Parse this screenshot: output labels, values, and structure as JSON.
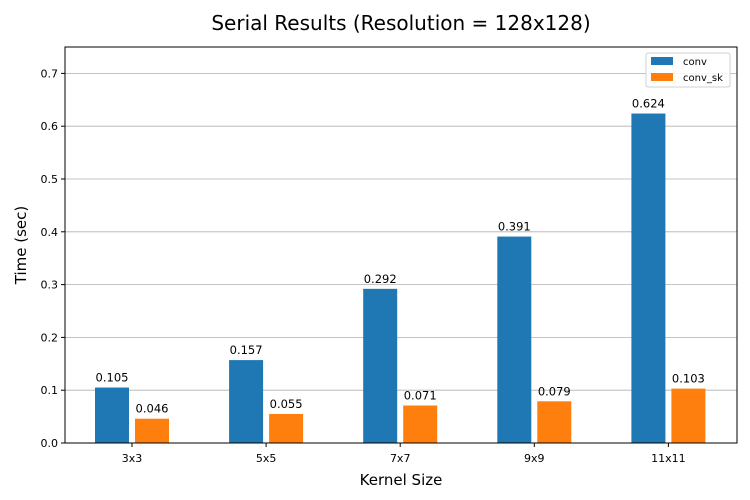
{
  "chart_data": {
    "type": "bar",
    "title": "Serial Results (Resolution = 128x128)",
    "xlabel": "Kernel Size",
    "ylabel": "Time (sec)",
    "categories": [
      "3x3",
      "5x5",
      "7x7",
      "9x9",
      "11x11"
    ],
    "series": [
      {
        "name": "conv",
        "values": [
          0.105,
          0.157,
          0.292,
          0.391,
          0.624
        ],
        "color": "#1f77b4"
      },
      {
        "name": "conv_sk",
        "values": [
          0.046,
          0.055,
          0.071,
          0.079,
          0.103
        ],
        "color": "#ff7f0e"
      }
    ],
    "ylim": [
      0,
      0.75
    ],
    "yticks": [
      0.0,
      0.1,
      0.2,
      0.3,
      0.4,
      0.5,
      0.6,
      0.7
    ],
    "ytick_labels": [
      "0.0",
      "0.1",
      "0.2",
      "0.3",
      "0.4",
      "0.5",
      "0.6",
      "0.7"
    ],
    "grid": "y",
    "legend": "top-right"
  }
}
